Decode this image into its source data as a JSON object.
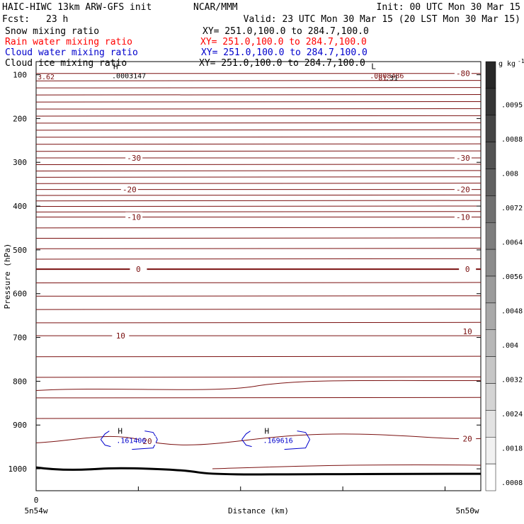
{
  "header": {
    "model": "HAIC-HIWC 13km ARW-GFS init",
    "org": "NCAR/MMM",
    "init": "Init: 00 UTC Mon 30 Mar 15",
    "fcst_label": "Fcst:",
    "fcst_value": "23 h",
    "valid": "Valid: 23 UTC Mon 30 Mar 15 (20 LST Mon 30 Mar 15)"
  },
  "fields": [
    {
      "name": "Snow mixing ratio",
      "xy": "XY= 251.0,100.0 to 284.7,100.0",
      "color": "#000000"
    },
    {
      "name": "Rain water mixing ratio",
      "xy": "XY= 251.0,100.0 to 284.7,100.0",
      "color": "#ff0000"
    },
    {
      "name": "Cloud water mixing ratio",
      "xy": "XY= 251.0,100.0 to 284.7,100.0",
      "color": "#0000cc"
    },
    {
      "name": "Cloud ice mixing ratio",
      "xy": "XY= 251.0,100.0 to 284.7,100.0",
      "color": "#000000"
    }
  ],
  "colors": {
    "temperature": "#7a1010",
    "cloud_water": "#0000cc",
    "ground": "#000000"
  },
  "chart_data": {
    "type": "cross-section",
    "ylabel": "Pressure (hPa)",
    "xlabel": "Distance (km)",
    "ylim": [
      1050,
      70
    ],
    "y_ticks": [
      100,
      200,
      300,
      400,
      500,
      600,
      700,
      800,
      900,
      1000
    ],
    "x_ticks": [
      "0"
    ],
    "x_end_labels": {
      "left": "5n54w",
      "right": "5n50w"
    },
    "colorbar": {
      "unit": "g kg",
      "unit_exp": "-1",
      "labels": [
        ".0095",
        ".0088",
        ".008",
        ".0072",
        ".0064",
        ".0056",
        ".0048",
        ".004",
        ".0032",
        ".0024",
        ".0018",
        ".0008"
      ]
    },
    "isotherms": [
      {
        "value": -80,
        "level": 97
      },
      {
        "value": -30,
        "level": 290
      },
      {
        "value": -20,
        "level": 362
      },
      {
        "value": -10,
        "level": 425
      },
      {
        "value": 0,
        "level": 544
      },
      {
        "value": 10,
        "level": 696
      },
      {
        "value": 20,
        "level": 931
      }
    ],
    "isotherm_labels": [
      {
        "text": "-80",
        "x": 0.96,
        "level": 97
      },
      {
        "text": "-30",
        "x": 0.22,
        "level": 290
      },
      {
        "text": "-30",
        "x": 0.96,
        "level": 290
      },
      {
        "text": "-20",
        "x": 0.21,
        "level": 362
      },
      {
        "text": "-20",
        "x": 0.96,
        "level": 362
      },
      {
        "text": "-10",
        "x": 0.22,
        "level": 425
      },
      {
        "text": "-10",
        "x": 0.96,
        "level": 425
      },
      {
        "text": "0",
        "x": 0.23,
        "level": 544
      },
      {
        "text": "0",
        "x": 0.97,
        "level": 544
      },
      {
        "text": "10",
        "x": 0.19,
        "level": 696
      },
      {
        "text": "10",
        "x": 0.97,
        "level": 686
      },
      {
        "text": "20",
        "x": 0.25,
        "level": 937
      },
      {
        "text": "20",
        "x": 0.97,
        "level": 931
      }
    ],
    "extrema": [
      {
        "symbol": "H",
        "value": ".0003147",
        "x": 0.18,
        "level": 100,
        "color": "#000000"
      },
      {
        "symbol": "L",
        "value": ".0008486",
        "x": 0.76,
        "level": 100,
        "color": "#7a1010"
      },
      {
        "symbol": "H",
        "value": ".161406",
        "x": 0.19,
        "level": 933,
        "color": "#0000cc"
      },
      {
        "symbol": "H",
        "value": ".169616",
        "x": 0.52,
        "level": 933,
        "color": "#0000cc"
      }
    ],
    "annotations": [
      {
        "text": "3.62",
        "x": 0.0,
        "level": 104,
        "color": "#7a1010"
      },
      {
        "text": "-81",
        "x": 0.76,
        "level": 106,
        "color": "#7a1010"
      },
      {
        "text": ".31",
        "x": 0.785,
        "level": 106,
        "color": "#000000"
      }
    ]
  }
}
